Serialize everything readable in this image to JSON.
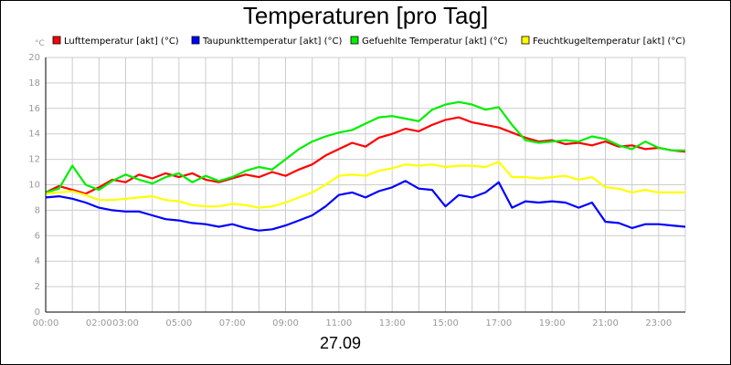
{
  "chart_data": {
    "type": "line",
    "title": "Temperaturen [pro Tag]",
    "unit_label": "°C",
    "date_label": "27.09",
    "x_unit": "hours",
    "xlim": [
      0,
      24
    ],
    "ylim": [
      0,
      20
    ],
    "y_ticks": [
      0,
      2,
      4,
      6,
      8,
      10,
      12,
      14,
      16,
      18,
      20
    ],
    "x_ticks": [
      {
        "label": "00:00",
        "value": 0
      },
      {
        "label": "02:00",
        "value": 2
      },
      {
        "label": "03:00",
        "value": 3
      },
      {
        "label": "05:00",
        "value": 5
      },
      {
        "label": "07:00",
        "value": 7
      },
      {
        "label": "09:00",
        "value": 9
      },
      {
        "label": "11:00",
        "value": 11
      },
      {
        "label": "13:00",
        "value": 13
      },
      {
        "label": "15:00",
        "value": 15
      },
      {
        "label": "17:00",
        "value": 17
      },
      {
        "label": "19:00",
        "value": 19
      },
      {
        "label": "21:00",
        "value": 21
      },
      {
        "label": "23:00",
        "value": 23
      }
    ],
    "grid": true,
    "legend_position": "top",
    "x": [
      0,
      0.5,
      1,
      1.5,
      2,
      2.5,
      3,
      3.5,
      4,
      4.5,
      5,
      5.5,
      6,
      6.5,
      7,
      7.5,
      8,
      8.5,
      9,
      9.5,
      10,
      10.5,
      11,
      11.5,
      12,
      12.5,
      13,
      13.5,
      14,
      14.5,
      15,
      15.5,
      16,
      16.5,
      17,
      17.5,
      18,
      18.5,
      19,
      19.5,
      20,
      20.5,
      21,
      21.5,
      22,
      22.5,
      23,
      23.5,
      24
    ],
    "series": [
      {
        "name": "Lufttemperatur [akt] (°C)",
        "color": "#ff0000",
        "values": [
          9.4,
          9.9,
          9.6,
          9.3,
          9.8,
          10.4,
          10.2,
          10.8,
          10.5,
          10.9,
          10.6,
          10.9,
          10.4,
          10.2,
          10.5,
          10.8,
          10.6,
          11.0,
          10.7,
          11.2,
          11.6,
          12.3,
          12.8,
          13.3,
          13.0,
          13.7,
          14.0,
          14.4,
          14.2,
          14.7,
          15.1,
          15.3,
          14.9,
          14.7,
          14.5,
          14.1,
          13.7,
          13.4,
          13.5,
          13.2,
          13.3,
          13.1,
          13.4,
          13.0,
          13.1,
          12.8,
          12.9,
          12.7,
          12.6
        ]
      },
      {
        "name": "Taupunkttemperatur [akt] (°C)",
        "color": "#0000ff",
        "values": [
          9.0,
          9.1,
          8.9,
          8.6,
          8.2,
          8.0,
          7.9,
          7.9,
          7.6,
          7.3,
          7.2,
          7.0,
          6.9,
          6.7,
          6.9,
          6.6,
          6.4,
          6.5,
          6.8,
          7.2,
          7.6,
          8.3,
          9.2,
          9.4,
          9.0,
          9.5,
          9.8,
          10.3,
          9.7,
          9.6,
          8.3,
          9.2,
          9.0,
          9.4,
          10.2,
          8.2,
          8.7,
          8.6,
          8.7,
          8.6,
          8.2,
          8.6,
          7.1,
          7.0,
          6.6,
          6.9,
          6.9,
          6.8,
          6.7
        ]
      },
      {
        "name": "Gefuehlte Temperatur [akt] (°C)",
        "color": "#00ee00",
        "values": [
          9.4,
          9.7,
          11.5,
          10.0,
          9.6,
          10.3,
          10.8,
          10.4,
          10.1,
          10.6,
          10.9,
          10.2,
          10.7,
          10.3,
          10.6,
          11.1,
          11.4,
          11.2,
          12.0,
          12.8,
          13.4,
          13.8,
          14.1,
          14.3,
          14.8,
          15.3,
          15.4,
          15.2,
          15.0,
          15.9,
          16.3,
          16.5,
          16.3,
          15.9,
          16.1,
          14.7,
          13.5,
          13.3,
          13.4,
          13.5,
          13.4,
          13.8,
          13.6,
          13.1,
          12.8,
          13.4,
          12.9,
          12.7,
          12.7
        ]
      },
      {
        "name": "Feuchtkugeltemperatur [akt] (°C)",
        "color": "#ffff00",
        "values": [
          9.3,
          9.4,
          9.5,
          9.2,
          8.8,
          8.8,
          8.9,
          9.0,
          9.1,
          8.8,
          8.7,
          8.4,
          8.3,
          8.3,
          8.5,
          8.4,
          8.2,
          8.3,
          8.6,
          9.0,
          9.4,
          10.0,
          10.7,
          10.8,
          10.7,
          11.1,
          11.3,
          11.6,
          11.5,
          11.6,
          11.4,
          11.5,
          11.5,
          11.4,
          11.8,
          10.6,
          10.6,
          10.5,
          10.6,
          10.7,
          10.4,
          10.6,
          9.8,
          9.7,
          9.4,
          9.6,
          9.4,
          9.4,
          9.4
        ]
      }
    ]
  }
}
